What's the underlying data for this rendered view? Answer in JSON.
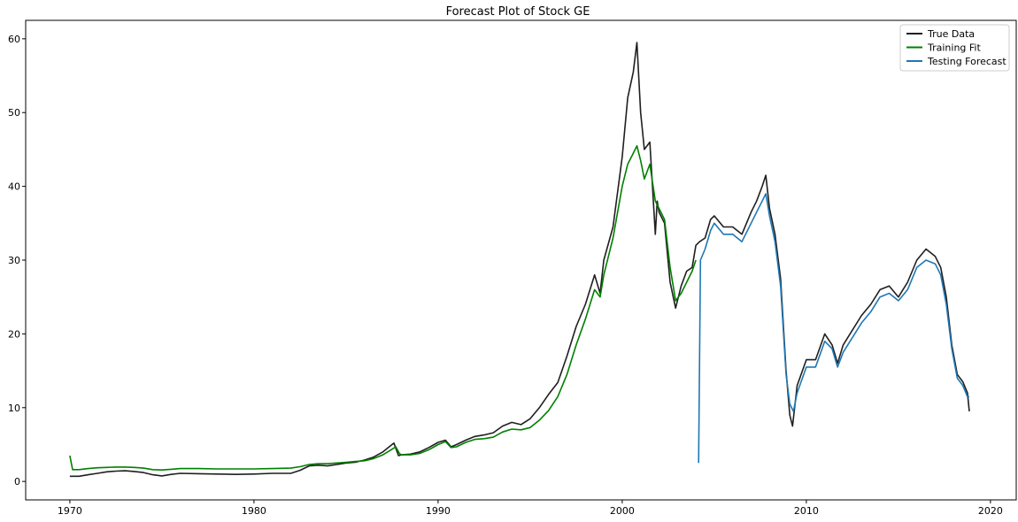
{
  "chart_data": {
    "type": "line",
    "title": "Forecast Plot of Stock GE",
    "xlabel": "",
    "ylabel": "",
    "xlim": [
      1967.6,
      2021.4
    ],
    "ylim": [
      -2.5,
      62.5
    ],
    "xticks": [
      1970,
      1980,
      1990,
      2000,
      2010,
      2020
    ],
    "yticks": [
      0,
      10,
      20,
      30,
      40,
      50,
      60
    ],
    "grid": false,
    "legend_position": "top-right",
    "series": [
      {
        "name": "True Data",
        "color": "#1f1f1f",
        "points": [
          [
            1970.0,
            0.7
          ],
          [
            1970.5,
            0.7
          ],
          [
            1971.0,
            0.9
          ],
          [
            1971.5,
            1.1
          ],
          [
            1972.0,
            1.3
          ],
          [
            1972.5,
            1.4
          ],
          [
            1973.0,
            1.45
          ],
          [
            1973.5,
            1.35
          ],
          [
            1974.0,
            1.2
          ],
          [
            1974.5,
            0.9
          ],
          [
            1975.0,
            0.75
          ],
          [
            1975.5,
            0.95
          ],
          [
            1976.0,
            1.1
          ],
          [
            1977.0,
            1.05
          ],
          [
            1978.0,
            1.0
          ],
          [
            1979.0,
            0.95
          ],
          [
            1980.0,
            1.0
          ],
          [
            1981.0,
            1.1
          ],
          [
            1982.0,
            1.1
          ],
          [
            1982.5,
            1.5
          ],
          [
            1983.0,
            2.1
          ],
          [
            1983.5,
            2.2
          ],
          [
            1984.0,
            2.1
          ],
          [
            1984.5,
            2.3
          ],
          [
            1985.0,
            2.5
          ],
          [
            1985.5,
            2.6
          ],
          [
            1986.0,
            2.9
          ],
          [
            1986.5,
            3.3
          ],
          [
            1987.0,
            4.0
          ],
          [
            1987.3,
            4.6
          ],
          [
            1987.6,
            5.2
          ],
          [
            1987.85,
            3.5
          ],
          [
            1988.0,
            3.6
          ],
          [
            1988.5,
            3.7
          ],
          [
            1989.0,
            4.0
          ],
          [
            1989.5,
            4.6
          ],
          [
            1990.0,
            5.3
          ],
          [
            1990.4,
            5.6
          ],
          [
            1990.7,
            4.7
          ],
          [
            1991.0,
            5.0
          ],
          [
            1991.5,
            5.6
          ],
          [
            1992.0,
            6.1
          ],
          [
            1992.5,
            6.3
          ],
          [
            1993.0,
            6.6
          ],
          [
            1993.5,
            7.5
          ],
          [
            1994.0,
            8.0
          ],
          [
            1994.5,
            7.7
          ],
          [
            1995.0,
            8.5
          ],
          [
            1995.5,
            10.0
          ],
          [
            1996.0,
            11.8
          ],
          [
            1996.5,
            13.4
          ],
          [
            1997.0,
            17.0
          ],
          [
            1997.5,
            21.0
          ],
          [
            1998.0,
            24.0
          ],
          [
            1998.5,
            28.0
          ],
          [
            1998.8,
            25.5
          ],
          [
            1999.0,
            30.0
          ],
          [
            1999.5,
            34.5
          ],
          [
            2000.0,
            44.0
          ],
          [
            2000.3,
            52.0
          ],
          [
            2000.6,
            55.5
          ],
          [
            2000.8,
            59.5
          ],
          [
            2001.0,
            50.0
          ],
          [
            2001.2,
            45.0
          ],
          [
            2001.5,
            46.0
          ],
          [
            2001.8,
            33.5
          ],
          [
            2001.9,
            38.0
          ],
          [
            2002.0,
            36.5
          ],
          [
            2002.3,
            35.0
          ],
          [
            2002.6,
            27.0
          ],
          [
            2002.9,
            23.5
          ],
          [
            2003.2,
            26.5
          ],
          [
            2003.5,
            28.5
          ],
          [
            2003.8,
            29.0
          ],
          [
            2004.0,
            32.0
          ],
          [
            2004.2,
            32.5
          ],
          [
            2004.5,
            33.0
          ],
          [
            2004.8,
            35.5
          ],
          [
            2005.0,
            36.0
          ],
          [
            2005.5,
            34.5
          ],
          [
            2006.0,
            34.5
          ],
          [
            2006.5,
            33.5
          ],
          [
            2007.0,
            36.5
          ],
          [
            2007.3,
            38.0
          ],
          [
            2007.6,
            40.0
          ],
          [
            2007.8,
            41.5
          ],
          [
            2008.0,
            37.0
          ],
          [
            2008.3,
            33.5
          ],
          [
            2008.6,
            27.5
          ],
          [
            2008.9,
            15.0
          ],
          [
            2009.1,
            9.0
          ],
          [
            2009.25,
            7.5
          ],
          [
            2009.5,
            13.0
          ],
          [
            2010.0,
            16.5
          ],
          [
            2010.5,
            16.5
          ],
          [
            2011.0,
            20.0
          ],
          [
            2011.4,
            18.5
          ],
          [
            2011.7,
            16.0
          ],
          [
            2012.0,
            18.5
          ],
          [
            2012.5,
            20.5
          ],
          [
            2013.0,
            22.5
          ],
          [
            2013.5,
            24.0
          ],
          [
            2014.0,
            26.0
          ],
          [
            2014.5,
            26.5
          ],
          [
            2015.0,
            25.0
          ],
          [
            2015.5,
            27.0
          ],
          [
            2016.0,
            30.0
          ],
          [
            2016.5,
            31.5
          ],
          [
            2017.0,
            30.5
          ],
          [
            2017.3,
            29.0
          ],
          [
            2017.6,
            25.0
          ],
          [
            2017.9,
            18.5
          ],
          [
            2018.2,
            14.5
          ],
          [
            2018.5,
            13.5
          ],
          [
            2018.75,
            12.0
          ],
          [
            2018.85,
            9.5
          ]
        ]
      },
      {
        "name": "Training Fit",
        "color": "#008000",
        "points": [
          [
            1970.0,
            3.5
          ],
          [
            1970.15,
            1.6
          ],
          [
            1970.5,
            1.6
          ],
          [
            1971.0,
            1.75
          ],
          [
            1971.5,
            1.85
          ],
          [
            1972.0,
            1.9
          ],
          [
            1972.5,
            1.95
          ],
          [
            1973.0,
            1.95
          ],
          [
            1973.5,
            1.9
          ],
          [
            1974.0,
            1.8
          ],
          [
            1974.5,
            1.6
          ],
          [
            1975.0,
            1.55
          ],
          [
            1975.5,
            1.65
          ],
          [
            1976.0,
            1.75
          ],
          [
            1977.0,
            1.75
          ],
          [
            1978.0,
            1.7
          ],
          [
            1979.0,
            1.7
          ],
          [
            1980.0,
            1.7
          ],
          [
            1981.0,
            1.75
          ],
          [
            1982.0,
            1.8
          ],
          [
            1982.5,
            2.0
          ],
          [
            1983.0,
            2.3
          ],
          [
            1983.5,
            2.4
          ],
          [
            1984.0,
            2.4
          ],
          [
            1985.0,
            2.6
          ],
          [
            1985.5,
            2.7
          ],
          [
            1986.0,
            2.8
          ],
          [
            1986.5,
            3.1
          ],
          [
            1987.0,
            3.6
          ],
          [
            1987.4,
            4.2
          ],
          [
            1987.7,
            4.7
          ],
          [
            1987.9,
            3.8
          ],
          [
            1988.0,
            3.6
          ],
          [
            1988.5,
            3.6
          ],
          [
            1989.0,
            3.8
          ],
          [
            1989.5,
            4.3
          ],
          [
            1990.0,
            5.0
          ],
          [
            1990.4,
            5.4
          ],
          [
            1990.7,
            4.6
          ],
          [
            1991.0,
            4.7
          ],
          [
            1991.5,
            5.3
          ],
          [
            1992.0,
            5.7
          ],
          [
            1992.5,
            5.8
          ],
          [
            1993.0,
            6.0
          ],
          [
            1993.5,
            6.7
          ],
          [
            1994.0,
            7.1
          ],
          [
            1994.5,
            7.0
          ],
          [
            1995.0,
            7.3
          ],
          [
            1995.5,
            8.3
          ],
          [
            1996.0,
            9.6
          ],
          [
            1996.5,
            11.5
          ],
          [
            1997.0,
            14.5
          ],
          [
            1997.5,
            18.5
          ],
          [
            1998.0,
            22.0
          ],
          [
            1998.5,
            26.0
          ],
          [
            1998.8,
            25.0
          ],
          [
            1999.0,
            28.0
          ],
          [
            1999.5,
            33.0
          ],
          [
            2000.0,
            40.0
          ],
          [
            2000.3,
            43.0
          ],
          [
            2000.6,
            44.5
          ],
          [
            2000.8,
            45.5
          ],
          [
            2001.0,
            43.5
          ],
          [
            2001.2,
            41.0
          ],
          [
            2001.5,
            43.0
          ],
          [
            2001.8,
            38.0
          ],
          [
            2002.0,
            37.0
          ],
          [
            2002.3,
            35.5
          ],
          [
            2002.6,
            29.0
          ],
          [
            2002.9,
            24.5
          ],
          [
            2003.2,
            25.5
          ],
          [
            2003.5,
            27.0
          ],
          [
            2003.8,
            28.5
          ],
          [
            2004.0,
            30.0
          ]
        ]
      },
      {
        "name": "Testing Forecast",
        "color": "#1f77b4",
        "points": [
          [
            2004.15,
            2.5
          ],
          [
            2004.25,
            30.0
          ],
          [
            2004.5,
            31.5
          ],
          [
            2004.8,
            34.0
          ],
          [
            2005.0,
            35.0
          ],
          [
            2005.5,
            33.5
          ],
          [
            2006.0,
            33.5
          ],
          [
            2006.5,
            32.5
          ],
          [
            2007.0,
            35.0
          ],
          [
            2007.3,
            36.5
          ],
          [
            2007.6,
            38.0
          ],
          [
            2007.8,
            39.0
          ],
          [
            2008.0,
            36.0
          ],
          [
            2008.3,
            32.5
          ],
          [
            2008.6,
            26.5
          ],
          [
            2008.9,
            14.5
          ],
          [
            2009.1,
            10.5
          ],
          [
            2009.3,
            9.5
          ],
          [
            2009.5,
            12.0
          ],
          [
            2010.0,
            15.5
          ],
          [
            2010.5,
            15.5
          ],
          [
            2011.0,
            19.0
          ],
          [
            2011.4,
            18.0
          ],
          [
            2011.7,
            15.5
          ],
          [
            2012.0,
            17.5
          ],
          [
            2012.5,
            19.5
          ],
          [
            2013.0,
            21.5
          ],
          [
            2013.5,
            23.0
          ],
          [
            2014.0,
            25.0
          ],
          [
            2014.5,
            25.5
          ],
          [
            2015.0,
            24.5
          ],
          [
            2015.5,
            26.0
          ],
          [
            2016.0,
            29.0
          ],
          [
            2016.5,
            30.0
          ],
          [
            2017.0,
            29.5
          ],
          [
            2017.3,
            28.0
          ],
          [
            2017.6,
            24.0
          ],
          [
            2017.9,
            18.0
          ],
          [
            2018.2,
            14.0
          ],
          [
            2018.5,
            13.0
          ],
          [
            2018.75,
            11.5
          ],
          [
            2018.85,
            11.5
          ]
        ]
      }
    ]
  }
}
